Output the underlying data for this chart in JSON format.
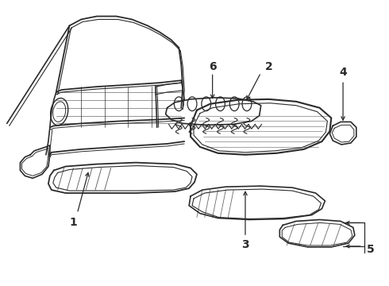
{
  "background_color": "#ffffff",
  "line_color": "#2a2a2a",
  "figsize": [
    4.9,
    3.6
  ],
  "dpi": 100,
  "label_fontsize": 10
}
